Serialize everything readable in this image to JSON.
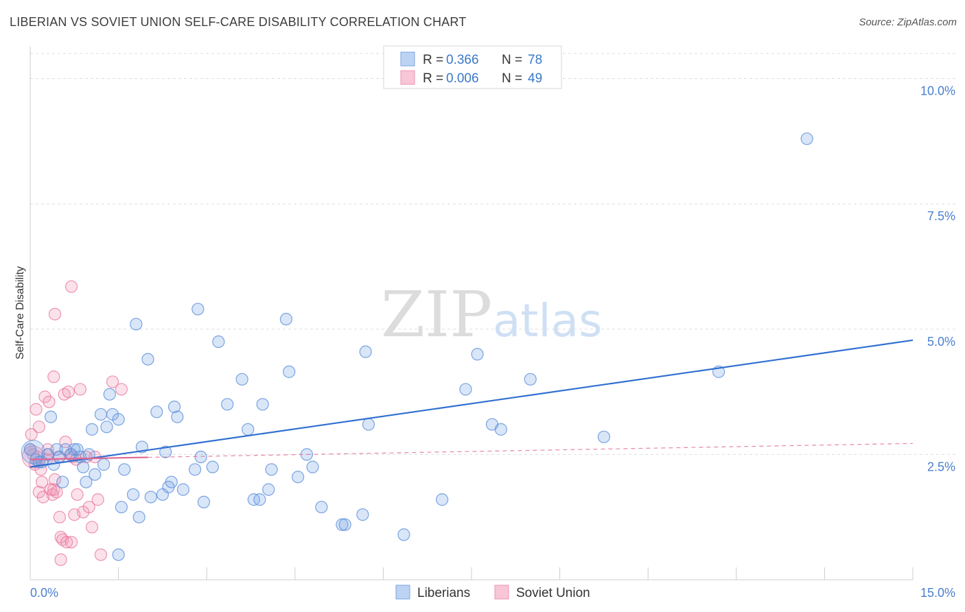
{
  "title": "LIBERIAN VS SOVIET UNION SELF-CARE DISABILITY CORRELATION CHART",
  "source": "Source: ZipAtlas.com",
  "watermark": {
    "zip": "ZIP",
    "atlas": "atlas"
  },
  "colors": {
    "liberians": "#5b8fd9",
    "liberians_fill": "rgba(120,165,230,0.28)",
    "soviet": "#e8729a",
    "soviet_fill": "rgba(240,150,180,0.28)",
    "trend_blue": "#2f6fd1",
    "trend_pink": "#e0668f",
    "axis_label": "#4a7fd0",
    "grid": "#dddddd"
  },
  "chart_data": {
    "type": "scatter",
    "title": "LIBERIAN VS SOVIET UNION SELF-CARE DISABILITY CORRELATION CHART",
    "xlabel": "",
    "ylabel": "Self-Care Disability",
    "xlim": [
      0,
      15
    ],
    "ylim": [
      0,
      10.5
    ],
    "x_tick_labels": [
      "0.0%",
      "15.0%"
    ],
    "y_ticks": [
      2.5,
      5.0,
      7.5,
      10.0
    ],
    "y_tick_labels": [
      "2.5%",
      "5.0%",
      "7.5%",
      "10.0%"
    ],
    "grid": true,
    "legend": {
      "placement": "top-center",
      "entries": [
        {
          "r_label": "R =",
          "r_value": "0.366",
          "n_label": "N =",
          "n_value": "78"
        },
        {
          "r_label": "R =",
          "r_value": "0.006",
          "n_label": "N =",
          "n_value": "49"
        }
      ]
    },
    "series": [
      {
        "name": "Liberians",
        "trend": {
          "x": [
            0.0,
            15.0
          ],
          "y": [
            2.25,
            4.78
          ]
        },
        "points": [
          [
            0.0,
            2.6
          ],
          [
            0.1,
            2.4
          ],
          [
            0.2,
            2.35
          ],
          [
            0.3,
            2.5
          ],
          [
            0.35,
            3.25
          ],
          [
            0.4,
            2.3
          ],
          [
            0.45,
            2.6
          ],
          [
            0.5,
            2.45
          ],
          [
            0.55,
            1.95
          ],
          [
            0.6,
            2.6
          ],
          [
            0.7,
            2.5
          ],
          [
            0.75,
            2.6
          ],
          [
            0.8,
            2.6
          ],
          [
            0.85,
            2.45
          ],
          [
            0.9,
            2.25
          ],
          [
            0.95,
            1.95
          ],
          [
            1.0,
            2.5
          ],
          [
            1.05,
            3.0
          ],
          [
            1.1,
            2.1
          ],
          [
            1.2,
            3.3
          ],
          [
            1.25,
            2.3
          ],
          [
            1.3,
            3.05
          ],
          [
            1.35,
            3.7
          ],
          [
            1.4,
            3.3
          ],
          [
            1.5,
            3.2
          ],
          [
            1.55,
            1.45
          ],
          [
            1.6,
            2.2
          ],
          [
            1.75,
            1.7
          ],
          [
            1.8,
            5.1
          ],
          [
            1.85,
            1.25
          ],
          [
            1.9,
            2.65
          ],
          [
            2.0,
            4.4
          ],
          [
            2.05,
            1.65
          ],
          [
            2.15,
            3.35
          ],
          [
            2.25,
            1.7
          ],
          [
            2.3,
            2.55
          ],
          [
            2.35,
            1.85
          ],
          [
            2.4,
            1.95
          ],
          [
            2.45,
            3.45
          ],
          [
            2.5,
            3.25
          ],
          [
            2.6,
            1.8
          ],
          [
            2.8,
            2.2
          ],
          [
            2.85,
            5.4
          ],
          [
            2.9,
            2.45
          ],
          [
            2.95,
            1.55
          ],
          [
            3.1,
            2.25
          ],
          [
            3.2,
            4.75
          ],
          [
            3.35,
            3.5
          ],
          [
            3.6,
            4.0
          ],
          [
            3.7,
            3.0
          ],
          [
            3.8,
            1.6
          ],
          [
            3.9,
            1.6
          ],
          [
            3.95,
            3.5
          ],
          [
            4.05,
            1.8
          ],
          [
            4.1,
            2.2
          ],
          [
            4.35,
            5.2
          ],
          [
            4.4,
            4.15
          ],
          [
            4.55,
            2.05
          ],
          [
            4.7,
            2.5
          ],
          [
            4.8,
            2.25
          ],
          [
            4.95,
            1.45
          ],
          [
            5.3,
            1.1
          ],
          [
            5.35,
            1.1
          ],
          [
            5.65,
            1.3
          ],
          [
            5.7,
            4.55
          ],
          [
            5.75,
            3.1
          ],
          [
            6.35,
            0.9
          ],
          [
            7.0,
            1.6
          ],
          [
            7.4,
            3.8
          ],
          [
            7.6,
            4.5
          ],
          [
            7.85,
            3.1
          ],
          [
            8.0,
            3.0
          ],
          [
            8.5,
            4.0
          ],
          [
            9.75,
            2.85
          ],
          [
            13.2,
            8.8
          ],
          [
            11.7,
            4.15
          ],
          [
            1.5,
            0.5
          ],
          [
            0.15,
            2.35
          ]
        ]
      },
      {
        "name": "Soviet Union",
        "trend": {
          "x": [
            0.0,
            15.0
          ],
          "y": [
            2.4,
            2.72
          ]
        },
        "trend_solid_until": 2.0,
        "points": [
          [
            0.0,
            2.6
          ],
          [
            0.02,
            2.9
          ],
          [
            0.05,
            2.5
          ],
          [
            0.08,
            2.3
          ],
          [
            0.1,
            3.4
          ],
          [
            0.12,
            2.45
          ],
          [
            0.15,
            1.75
          ],
          [
            0.18,
            2.2
          ],
          [
            0.2,
            1.95
          ],
          [
            0.22,
            1.65
          ],
          [
            0.25,
            3.65
          ],
          [
            0.28,
            2.4
          ],
          [
            0.3,
            2.5
          ],
          [
            0.32,
            3.55
          ],
          [
            0.35,
            1.8
          ],
          [
            0.38,
            1.7
          ],
          [
            0.4,
            1.8
          ],
          [
            0.42,
            2.0
          ],
          [
            0.45,
            1.75
          ],
          [
            0.48,
            2.45
          ],
          [
            0.5,
            1.25
          ],
          [
            0.52,
            0.85
          ],
          [
            0.55,
            0.8
          ],
          [
            0.58,
            3.7
          ],
          [
            0.6,
            2.75
          ],
          [
            0.62,
            0.75
          ],
          [
            0.65,
            3.75
          ],
          [
            0.68,
            2.5
          ],
          [
            0.7,
            0.75
          ],
          [
            0.72,
            2.45
          ],
          [
            0.75,
            1.3
          ],
          [
            0.78,
            2.4
          ],
          [
            0.8,
            1.7
          ],
          [
            0.85,
            3.8
          ],
          [
            0.9,
            1.35
          ],
          [
            0.95,
            2.45
          ],
          [
            1.0,
            1.45
          ],
          [
            1.05,
            1.05
          ],
          [
            1.1,
            2.45
          ],
          [
            1.15,
            1.6
          ],
          [
            1.2,
            0.5
          ],
          [
            1.4,
            3.95
          ],
          [
            1.55,
            3.8
          ],
          [
            0.4,
            4.05
          ],
          [
            0.42,
            5.3
          ],
          [
            0.52,
            0.4
          ],
          [
            0.7,
            5.85
          ],
          [
            0.3,
            2.6
          ],
          [
            0.15,
            3.05
          ]
        ]
      }
    ]
  }
}
